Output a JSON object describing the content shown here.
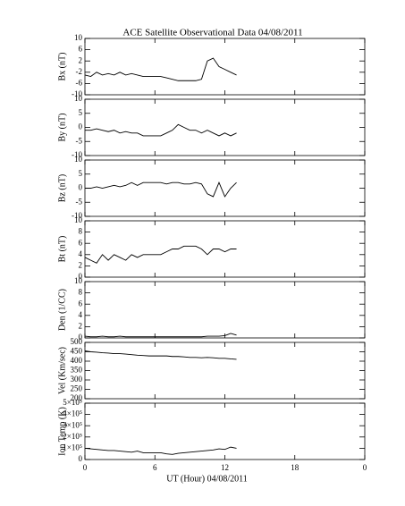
{
  "title": "ACE Satellite Observational Data   04/08/2011",
  "chart_data": [
    {
      "type": "line",
      "ylabel": "Bx (nT)",
      "xlim": [
        0,
        24
      ],
      "ylim": [
        -10,
        10
      ],
      "yticks": [
        -10,
        -6,
        -2,
        2,
        6,
        10
      ],
      "color": "#000000",
      "x": [
        0,
        0.5,
        1,
        1.5,
        2,
        2.5,
        3,
        3.5,
        4,
        4.5,
        5,
        5.5,
        6,
        6.5,
        7,
        7.5,
        8,
        8.5,
        9,
        9.5,
        10,
        10.5,
        11,
        11.5,
        12,
        12.5,
        13
      ],
      "values": [
        -3,
        -3.5,
        -2,
        -3,
        -2.5,
        -3,
        -2,
        -3,
        -2.5,
        -3,
        -3.5,
        -3.5,
        -3.5,
        -3.5,
        -4,
        -4.5,
        -5,
        -5,
        -5,
        -5,
        -4.5,
        2,
        3,
        0,
        -1,
        -2,
        -3
      ]
    },
    {
      "type": "line",
      "ylabel": "By (nT)",
      "xlim": [
        0,
        24
      ],
      "ylim": [
        -10,
        10
      ],
      "yticks": [
        -10,
        -5,
        0,
        5,
        10
      ],
      "color": "#000000",
      "x": [
        0,
        0.5,
        1,
        1.5,
        2,
        2.5,
        3,
        3.5,
        4,
        4.5,
        5,
        5.5,
        6,
        6.5,
        7,
        7.5,
        8,
        8.5,
        9,
        9.5,
        10,
        10.5,
        11,
        11.5,
        12,
        12.5,
        13
      ],
      "values": [
        -1,
        -1,
        -0.5,
        -1,
        -1.5,
        -1,
        -2,
        -1.5,
        -2,
        -2,
        -3,
        -3,
        -3,
        -3,
        -2,
        -1,
        1,
        0,
        -1,
        -1,
        -2,
        -1,
        -2,
        -3,
        -2,
        -3,
        -2
      ]
    },
    {
      "type": "line",
      "ylabel": "Bz (nT)",
      "xlim": [
        0,
        24
      ],
      "ylim": [
        -10,
        10
      ],
      "yticks": [
        -10,
        -5,
        0,
        5,
        10
      ],
      "color": "#000000",
      "x": [
        0,
        0.5,
        1,
        1.5,
        2,
        2.5,
        3,
        3.5,
        4,
        4.5,
        5,
        5.5,
        6,
        6.5,
        7,
        7.5,
        8,
        8.5,
        9,
        9.5,
        10,
        10.5,
        11,
        11.5,
        12,
        12.5,
        13
      ],
      "values": [
        0,
        0,
        0.5,
        0,
        0.5,
        1,
        0.5,
        1,
        2,
        1,
        2,
        2,
        2,
        2,
        1.5,
        2,
        2,
        1.5,
        1.5,
        2,
        1.5,
        -2,
        -3,
        2,
        -3,
        0,
        2
      ]
    },
    {
      "type": "line",
      "ylabel": "Bt (nT)",
      "xlim": [
        0,
        24
      ],
      "ylim": [
        0,
        10
      ],
      "yticks": [
        0,
        2,
        4,
        6,
        8,
        10
      ],
      "color": "#000000",
      "x": [
        0,
        0.5,
        1,
        1.5,
        2,
        2.5,
        3,
        3.5,
        4,
        4.5,
        5,
        5.5,
        6,
        6.5,
        7,
        7.5,
        8,
        8.5,
        9,
        9.5,
        10,
        10.5,
        11,
        11.5,
        12,
        12.5,
        13
      ],
      "values": [
        3.5,
        3,
        2.5,
        4,
        3,
        4,
        3.5,
        3,
        4,
        3.5,
        4,
        4,
        4,
        4,
        4.5,
        5,
        5,
        5.5,
        5.5,
        5.5,
        5,
        4,
        5,
        5,
        4.5,
        5,
        5
      ]
    },
    {
      "type": "line",
      "ylabel": "Den (1/CC)",
      "xlim": [
        0,
        24
      ],
      "ylim": [
        0,
        10
      ],
      "yticks": [
        0,
        2,
        4,
        6,
        8,
        10
      ],
      "color": "#000000",
      "x": [
        0,
        0.5,
        1,
        1.5,
        2,
        2.5,
        3,
        3.5,
        4,
        4.5,
        5,
        5.5,
        6,
        6.5,
        7,
        7.5,
        8,
        8.5,
        9,
        9.5,
        10,
        10.5,
        11,
        11.5,
        12,
        12.5,
        13
      ],
      "values": [
        0.3,
        0.2,
        0.2,
        0.3,
        0.2,
        0.2,
        0.3,
        0.2,
        0.2,
        0.2,
        0.2,
        0.2,
        0.2,
        0.2,
        0.2,
        0.2,
        0.2,
        0.2,
        0.2,
        0.2,
        0.2,
        0.3,
        0.3,
        0.3,
        0.4,
        0.8,
        0.5
      ]
    },
    {
      "type": "line",
      "ylabel": "Vel (Km/sec)",
      "xlim": [
        0,
        24
      ],
      "ylim": [
        200,
        500
      ],
      "yticks": [
        200,
        250,
        300,
        350,
        400,
        450,
        500
      ],
      "color": "#000000",
      "x": [
        0,
        0.5,
        1,
        1.5,
        2,
        2.5,
        3,
        3.5,
        4,
        4.5,
        5,
        5.5,
        6,
        6.5,
        7,
        7.5,
        8,
        8.5,
        9,
        9.5,
        10,
        10.5,
        11,
        11.5,
        12,
        12.5,
        13
      ],
      "values": [
        455,
        450,
        448,
        445,
        443,
        440,
        440,
        438,
        435,
        432,
        430,
        428,
        428,
        428,
        428,
        425,
        425,
        423,
        420,
        420,
        418,
        420,
        418,
        415,
        415,
        412,
        410
      ]
    },
    {
      "type": "line",
      "ylabel": "Ion Temp (K)",
      "xlabel": "UT (Hour)  04/08/2011",
      "xlim": [
        0,
        24
      ],
      "ylim": [
        0,
        500000
      ],
      "yticks": [
        0,
        {
          "value": 100000,
          "label": "1×10⁵"
        },
        {
          "value": 200000,
          "label": "2×10⁵"
        },
        {
          "value": 300000,
          "label": "3×10⁵"
        },
        {
          "value": 400000,
          "label": "4×10⁵"
        },
        {
          "value": 500000,
          "label": "5×10⁵"
        }
      ],
      "xticks": [
        0,
        6,
        12,
        18,
        {
          "value": 24,
          "label": "0"
        }
      ],
      "color": "#000000",
      "x": [
        0,
        0.5,
        1,
        1.5,
        2,
        2.5,
        3,
        3.5,
        4,
        4.5,
        5,
        5.5,
        6,
        6.5,
        7,
        7.5,
        8,
        8.5,
        9,
        9.5,
        10,
        10.5,
        11,
        11.5,
        12,
        12.5,
        13
      ],
      "values": [
        100000,
        95000,
        90000,
        85000,
        80000,
        80000,
        75000,
        70000,
        65000,
        75000,
        60000,
        60000,
        60000,
        60000,
        50000,
        45000,
        55000,
        60000,
        65000,
        70000,
        75000,
        80000,
        85000,
        95000,
        90000,
        110000,
        100000
      ]
    }
  ]
}
